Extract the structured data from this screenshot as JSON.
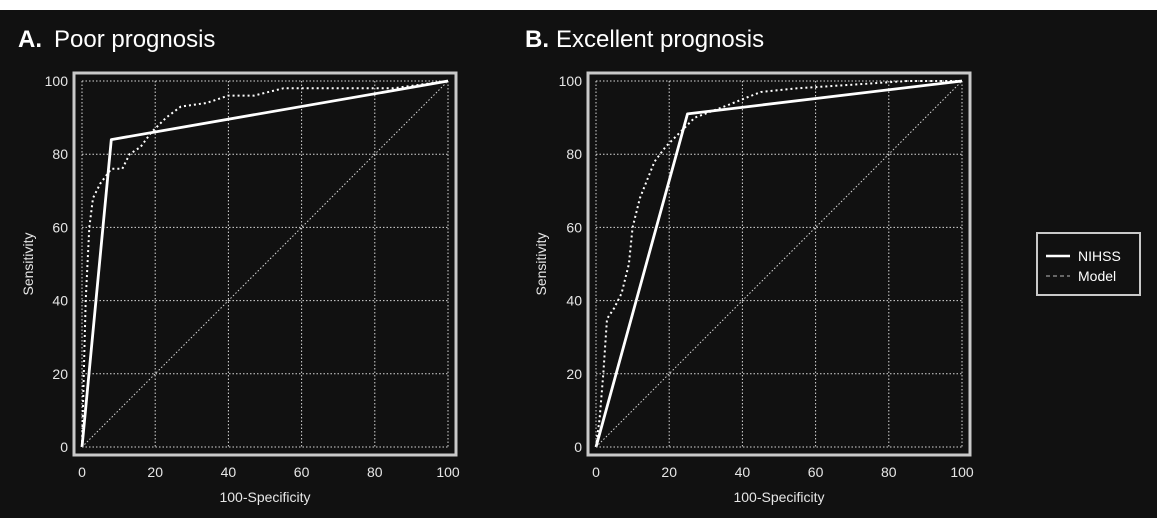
{
  "chart_data": [
    {
      "type": "line",
      "title": "Poor prognosis",
      "panel_letter": "A.",
      "xlabel": "100-Specificity",
      "ylabel": "Sensitivity",
      "xlim": [
        0,
        100
      ],
      "ylim": [
        0,
        100
      ],
      "x_ticks": [
        "0",
        "20",
        "40",
        "60",
        "80",
        "100"
      ],
      "y_ticks": [
        "0",
        "20",
        "40",
        "60",
        "80",
        "100"
      ],
      "grid": true,
      "series": [
        {
          "name": "NIHSS",
          "style": "solid",
          "points": [
            [
              0,
              0
            ],
            [
              8,
              84
            ],
            [
              100,
              100
            ]
          ]
        },
        {
          "name": "Model",
          "style": "dotted",
          "points": [
            [
              0,
              0
            ],
            [
              0.5,
              20
            ],
            [
              1,
              40
            ],
            [
              1.5,
              50
            ],
            [
              2,
              60
            ],
            [
              3,
              68
            ],
            [
              5,
              72
            ],
            [
              8,
              76
            ],
            [
              11,
              76
            ],
            [
              13,
              80
            ],
            [
              16,
              82
            ],
            [
              19,
              86
            ],
            [
              23,
              90
            ],
            [
              27,
              93
            ],
            [
              34,
              94
            ],
            [
              40,
              96
            ],
            [
              47,
              96
            ],
            [
              55,
              98
            ],
            [
              70,
              98
            ],
            [
              85,
              98
            ],
            [
              100,
              100
            ]
          ]
        },
        {
          "name": "",
          "style": "diagonal",
          "points": [
            [
              0,
              0
            ],
            [
              100,
              100
            ]
          ]
        }
      ]
    },
    {
      "type": "line",
      "title": "Excellent prognosis",
      "panel_letter": "B.",
      "xlabel": "100-Specificity",
      "ylabel": "Sensitivity",
      "xlim": [
        0,
        100
      ],
      "ylim": [
        0,
        100
      ],
      "x_ticks": [
        "0",
        "20",
        "40",
        "60",
        "80",
        "100"
      ],
      "y_ticks": [
        "0",
        "20",
        "40",
        "60",
        "80",
        "100"
      ],
      "grid": true,
      "series": [
        {
          "name": "NIHSS",
          "style": "solid",
          "points": [
            [
              0,
              0
            ],
            [
              25,
              91
            ],
            [
              100,
              100
            ]
          ]
        },
        {
          "name": "Model",
          "style": "dotted",
          "points": [
            [
              0,
              0
            ],
            [
              1,
              8
            ],
            [
              2,
              20
            ],
            [
              3,
              35
            ],
            [
              5,
              38
            ],
            [
              7,
              42
            ],
            [
              9,
              50
            ],
            [
              10,
              60
            ],
            [
              12,
              68
            ],
            [
              14,
              73
            ],
            [
              16,
              78
            ],
            [
              19,
              82
            ],
            [
              23,
              86
            ],
            [
              27,
              90
            ],
            [
              35,
              93
            ],
            [
              45,
              97
            ],
            [
              55,
              98
            ],
            [
              70,
              99
            ],
            [
              85,
              100
            ],
            [
              100,
              100
            ]
          ]
        },
        {
          "name": "",
          "style": "diagonal",
          "points": [
            [
              0,
              0
            ],
            [
              100,
              100
            ]
          ]
        }
      ]
    }
  ],
  "legend": {
    "placement": "right",
    "entries": [
      {
        "label": "NIHSS",
        "style": "solid"
      },
      {
        "label": "Model",
        "style": "dashed"
      }
    ]
  },
  "colors": {
    "background": "#111111",
    "frame": "#c9c9c9",
    "grid": "#d8d8d8",
    "curve": "#ffffff",
    "text": "#ffffff",
    "tick_text": "#e6e6e6",
    "legend_dash": "#9a9a9a"
  }
}
